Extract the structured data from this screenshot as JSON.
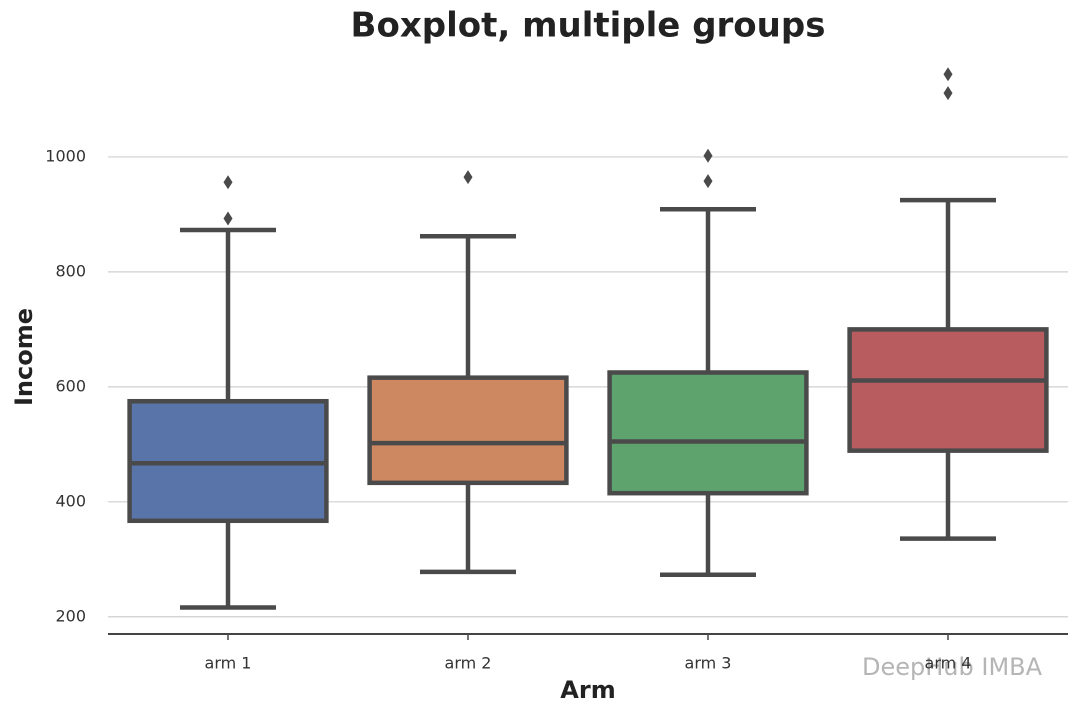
{
  "chart_data": {
    "type": "box",
    "title": "Boxplot, multiple groups",
    "x_label": "Arm",
    "y_label": "Income",
    "categories": [
      "arm 1",
      "arm 2",
      "arm 3",
      "arm 4"
    ],
    "colors": [
      "#5874a8",
      "#cd8862",
      "#5ea26e",
      "#b85c60"
    ],
    "boxes": [
      {
        "whislo": 216,
        "q1": 367,
        "med": 467,
        "q3": 575,
        "whishi": 873,
        "fliers": [
          956,
          893
        ]
      },
      {
        "whislo": 278,
        "q1": 433,
        "med": 502,
        "q3": 616,
        "whishi": 862,
        "fliers": [
          965
        ]
      },
      {
        "whislo": 273,
        "q1": 415,
        "med": 505,
        "q3": 625,
        "whishi": 909,
        "fliers": [
          1002,
          958
        ]
      },
      {
        "whislo": 336,
        "q1": 489,
        "med": 611,
        "q3": 700,
        "whishi": 925,
        "fliers": [
          1144,
          1111
        ]
      }
    ],
    "ylim": [
      170,
      1160
    ],
    "yticks": [
      200,
      400,
      600,
      800,
      1000
    ],
    "grid": true,
    "watermark": "DeepHub IMBA"
  }
}
